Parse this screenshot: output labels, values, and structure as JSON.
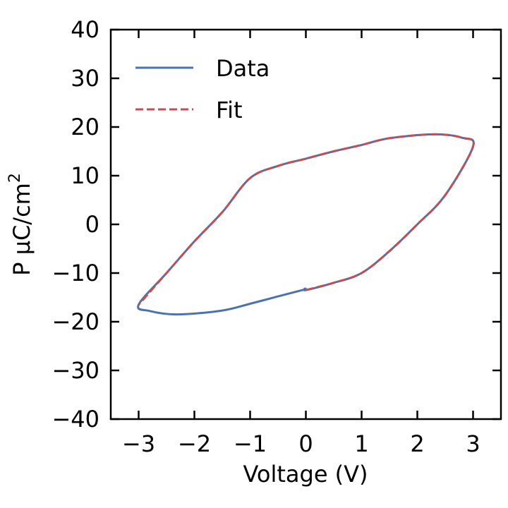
{
  "chart_data": {
    "type": "line",
    "title": "",
    "xlabel": "Voltage (V)",
    "ylabel": "P μC/cm",
    "ylabel_superscript": "2",
    "xlim": [
      -3.5,
      3.5
    ],
    "ylim": [
      -40,
      40
    ],
    "x_ticks": [
      -3,
      -2,
      -1,
      0,
      1,
      2,
      3
    ],
    "x_tick_labels": [
      "−3",
      "−2",
      "−1",
      "0",
      "1",
      "2",
      "3"
    ],
    "y_ticks": [
      -40,
      -30,
      -20,
      -10,
      0,
      10,
      20,
      30,
      40
    ],
    "y_tick_labels": [
      "−40",
      "−30",
      "−20",
      "−10",
      "0",
      "10",
      "20",
      "30",
      "40"
    ],
    "grid": false,
    "legend_position": "top-left",
    "series": [
      {
        "name": "Data",
        "color": "#4c72b0",
        "dash": "solid",
        "points": [
          [
            0.0,
            -13.0
          ],
          [
            0.0,
            -13.5
          ],
          [
            0.5,
            -12.0
          ],
          [
            1.0,
            -10.0
          ],
          [
            1.5,
            -5.5
          ],
          [
            2.0,
            0.0
          ],
          [
            2.5,
            6.0
          ],
          [
            3.0,
            16.0
          ],
          [
            2.8,
            17.8
          ],
          [
            2.3,
            18.5
          ],
          [
            1.5,
            17.7
          ],
          [
            1.0,
            16.3
          ],
          [
            0.5,
            15.0
          ],
          [
            0.0,
            13.5
          ],
          [
            -0.5,
            12.0
          ],
          [
            -1.0,
            9.5
          ],
          [
            -1.5,
            2.5
          ],
          [
            -2.0,
            -3.5
          ],
          [
            -2.5,
            -10.0
          ],
          [
            -3.0,
            -16.5
          ],
          [
            -2.8,
            -17.8
          ],
          [
            -2.3,
            -18.5
          ],
          [
            -1.5,
            -17.7
          ],
          [
            -1.0,
            -16.3
          ],
          [
            -0.5,
            -14.8
          ],
          [
            0.0,
            -13.3
          ]
        ]
      },
      {
        "name": "Fit",
        "color": "#c44e52",
        "dash": "dashed",
        "points": [
          [
            0.0,
            -13.5
          ],
          [
            0.5,
            -12.0
          ],
          [
            1.0,
            -10.0
          ],
          [
            1.5,
            -5.5
          ],
          [
            2.0,
            0.0
          ],
          [
            2.5,
            6.0
          ],
          [
            3.0,
            16.0
          ],
          [
            2.8,
            17.8
          ],
          [
            2.3,
            18.5
          ],
          [
            1.5,
            17.7
          ],
          [
            1.0,
            16.3
          ],
          [
            0.5,
            15.0
          ],
          [
            0.0,
            13.5
          ],
          [
            -0.5,
            12.0
          ],
          [
            -1.0,
            9.5
          ],
          [
            -1.5,
            2.5
          ],
          [
            -2.0,
            -3.5
          ],
          [
            -2.5,
            -10.0
          ],
          [
            -3.0,
            -16.5
          ]
        ]
      }
    ]
  }
}
